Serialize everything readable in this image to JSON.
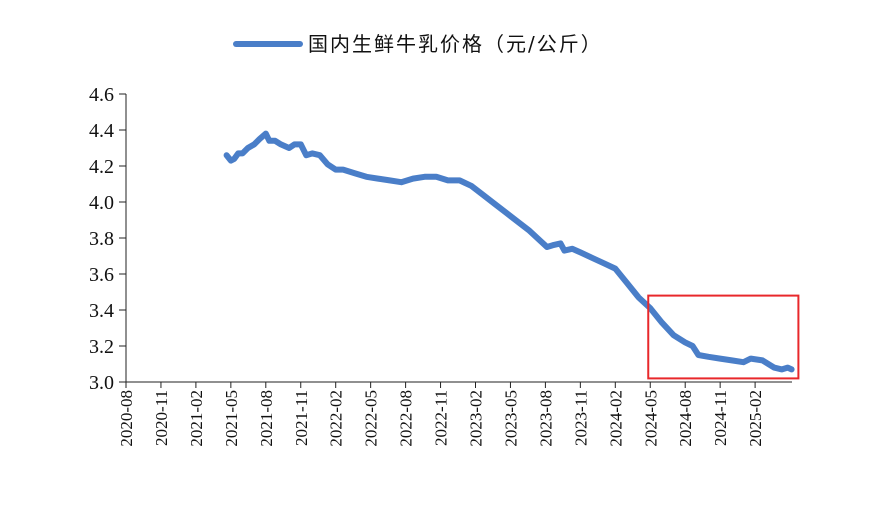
{
  "chart_data": {
    "type": "line",
    "title": "",
    "xlabel": "",
    "ylabel": "",
    "ylim": [
      3.0,
      4.6
    ],
    "yticks": [
      "3.0",
      "3.2",
      "3.4",
      "3.6",
      "3.8",
      "4.0",
      "4.2",
      "4.4",
      "4.6"
    ],
    "xticks": [
      "2020-08",
      "2020-11",
      "2021-02",
      "2021-05",
      "2021-08",
      "2021-11",
      "2022-02",
      "2022-05",
      "2022-08",
      "2022-11",
      "2023-02",
      "2023-05",
      "2023-08",
      "2023-11",
      "2024-02",
      "2024-05",
      "2024-08",
      "2024-11",
      "2025-02"
    ],
    "grid": false,
    "legend_position": "top-center",
    "highlight_box": {
      "x_start": "2024-05",
      "x_end": "2025-04",
      "y_start": 3.02,
      "y_end": 3.48,
      "color": "#e8282b"
    },
    "series": [
      {
        "name": "国内生鲜牛乳价格（元/公斤）",
        "color": "#4a7ec8",
        "points": [
          [
            "2021-04-20",
            4.26
          ],
          [
            "2021-05-01",
            4.23
          ],
          [
            "2021-05-10",
            4.24
          ],
          [
            "2021-05-20",
            4.27
          ],
          [
            "2021-06-01",
            4.27
          ],
          [
            "2021-06-15",
            4.3
          ],
          [
            "2021-07-01",
            4.32
          ],
          [
            "2021-07-15",
            4.35
          ],
          [
            "2021-08-01",
            4.38
          ],
          [
            "2021-08-10",
            4.34
          ],
          [
            "2021-08-25",
            4.34
          ],
          [
            "2021-09-10",
            4.32
          ],
          [
            "2021-10-01",
            4.3
          ],
          [
            "2021-10-15",
            4.32
          ],
          [
            "2021-11-01",
            4.32
          ],
          [
            "2021-11-15",
            4.26
          ],
          [
            "2021-12-01",
            4.27
          ],
          [
            "2021-12-20",
            4.26
          ],
          [
            "2022-01-10",
            4.21
          ],
          [
            "2022-02-01",
            4.18
          ],
          [
            "2022-02-20",
            4.18
          ],
          [
            "2022-03-20",
            4.16
          ],
          [
            "2022-04-20",
            4.14
          ],
          [
            "2022-05-20",
            4.13
          ],
          [
            "2022-06-20",
            4.12
          ],
          [
            "2022-07-20",
            4.11
          ],
          [
            "2022-08-20",
            4.13
          ],
          [
            "2022-09-20",
            4.14
          ],
          [
            "2022-10-20",
            4.14
          ],
          [
            "2022-11-20",
            4.12
          ],
          [
            "2022-12-20",
            4.12
          ],
          [
            "2023-01-20",
            4.09
          ],
          [
            "2023-02-20",
            4.04
          ],
          [
            "2023-03-20",
            3.99
          ],
          [
            "2023-04-20",
            3.94
          ],
          [
            "2023-05-20",
            3.89
          ],
          [
            "2023-06-20",
            3.84
          ],
          [
            "2023-07-20",
            3.78
          ],
          [
            "2023-08-05",
            3.75
          ],
          [
            "2023-08-20",
            3.76
          ],
          [
            "2023-09-10",
            3.77
          ],
          [
            "2023-09-20",
            3.73
          ],
          [
            "2023-10-10",
            3.74
          ],
          [
            "2023-11-01",
            3.72
          ],
          [
            "2023-12-01",
            3.69
          ],
          [
            "2024-01-01",
            3.66
          ],
          [
            "2024-02-01",
            3.63
          ],
          [
            "2024-03-01",
            3.55
          ],
          [
            "2024-04-01",
            3.47
          ],
          [
            "2024-05-01",
            3.41
          ],
          [
            "2024-06-01",
            3.33
          ],
          [
            "2024-07-01",
            3.26
          ],
          [
            "2024-08-01",
            3.22
          ],
          [
            "2024-08-20",
            3.2
          ],
          [
            "2024-09-05",
            3.15
          ],
          [
            "2024-10-01",
            3.14
          ],
          [
            "2024-11-01",
            3.13
          ],
          [
            "2024-12-01",
            3.12
          ],
          [
            "2025-01-01",
            3.11
          ],
          [
            "2025-01-20",
            3.13
          ],
          [
            "2025-02-20",
            3.12
          ],
          [
            "2025-03-20",
            3.08
          ],
          [
            "2025-04-10",
            3.07
          ],
          [
            "2025-04-25",
            3.08
          ],
          [
            "2025-05-05",
            3.07
          ]
        ]
      }
    ]
  }
}
